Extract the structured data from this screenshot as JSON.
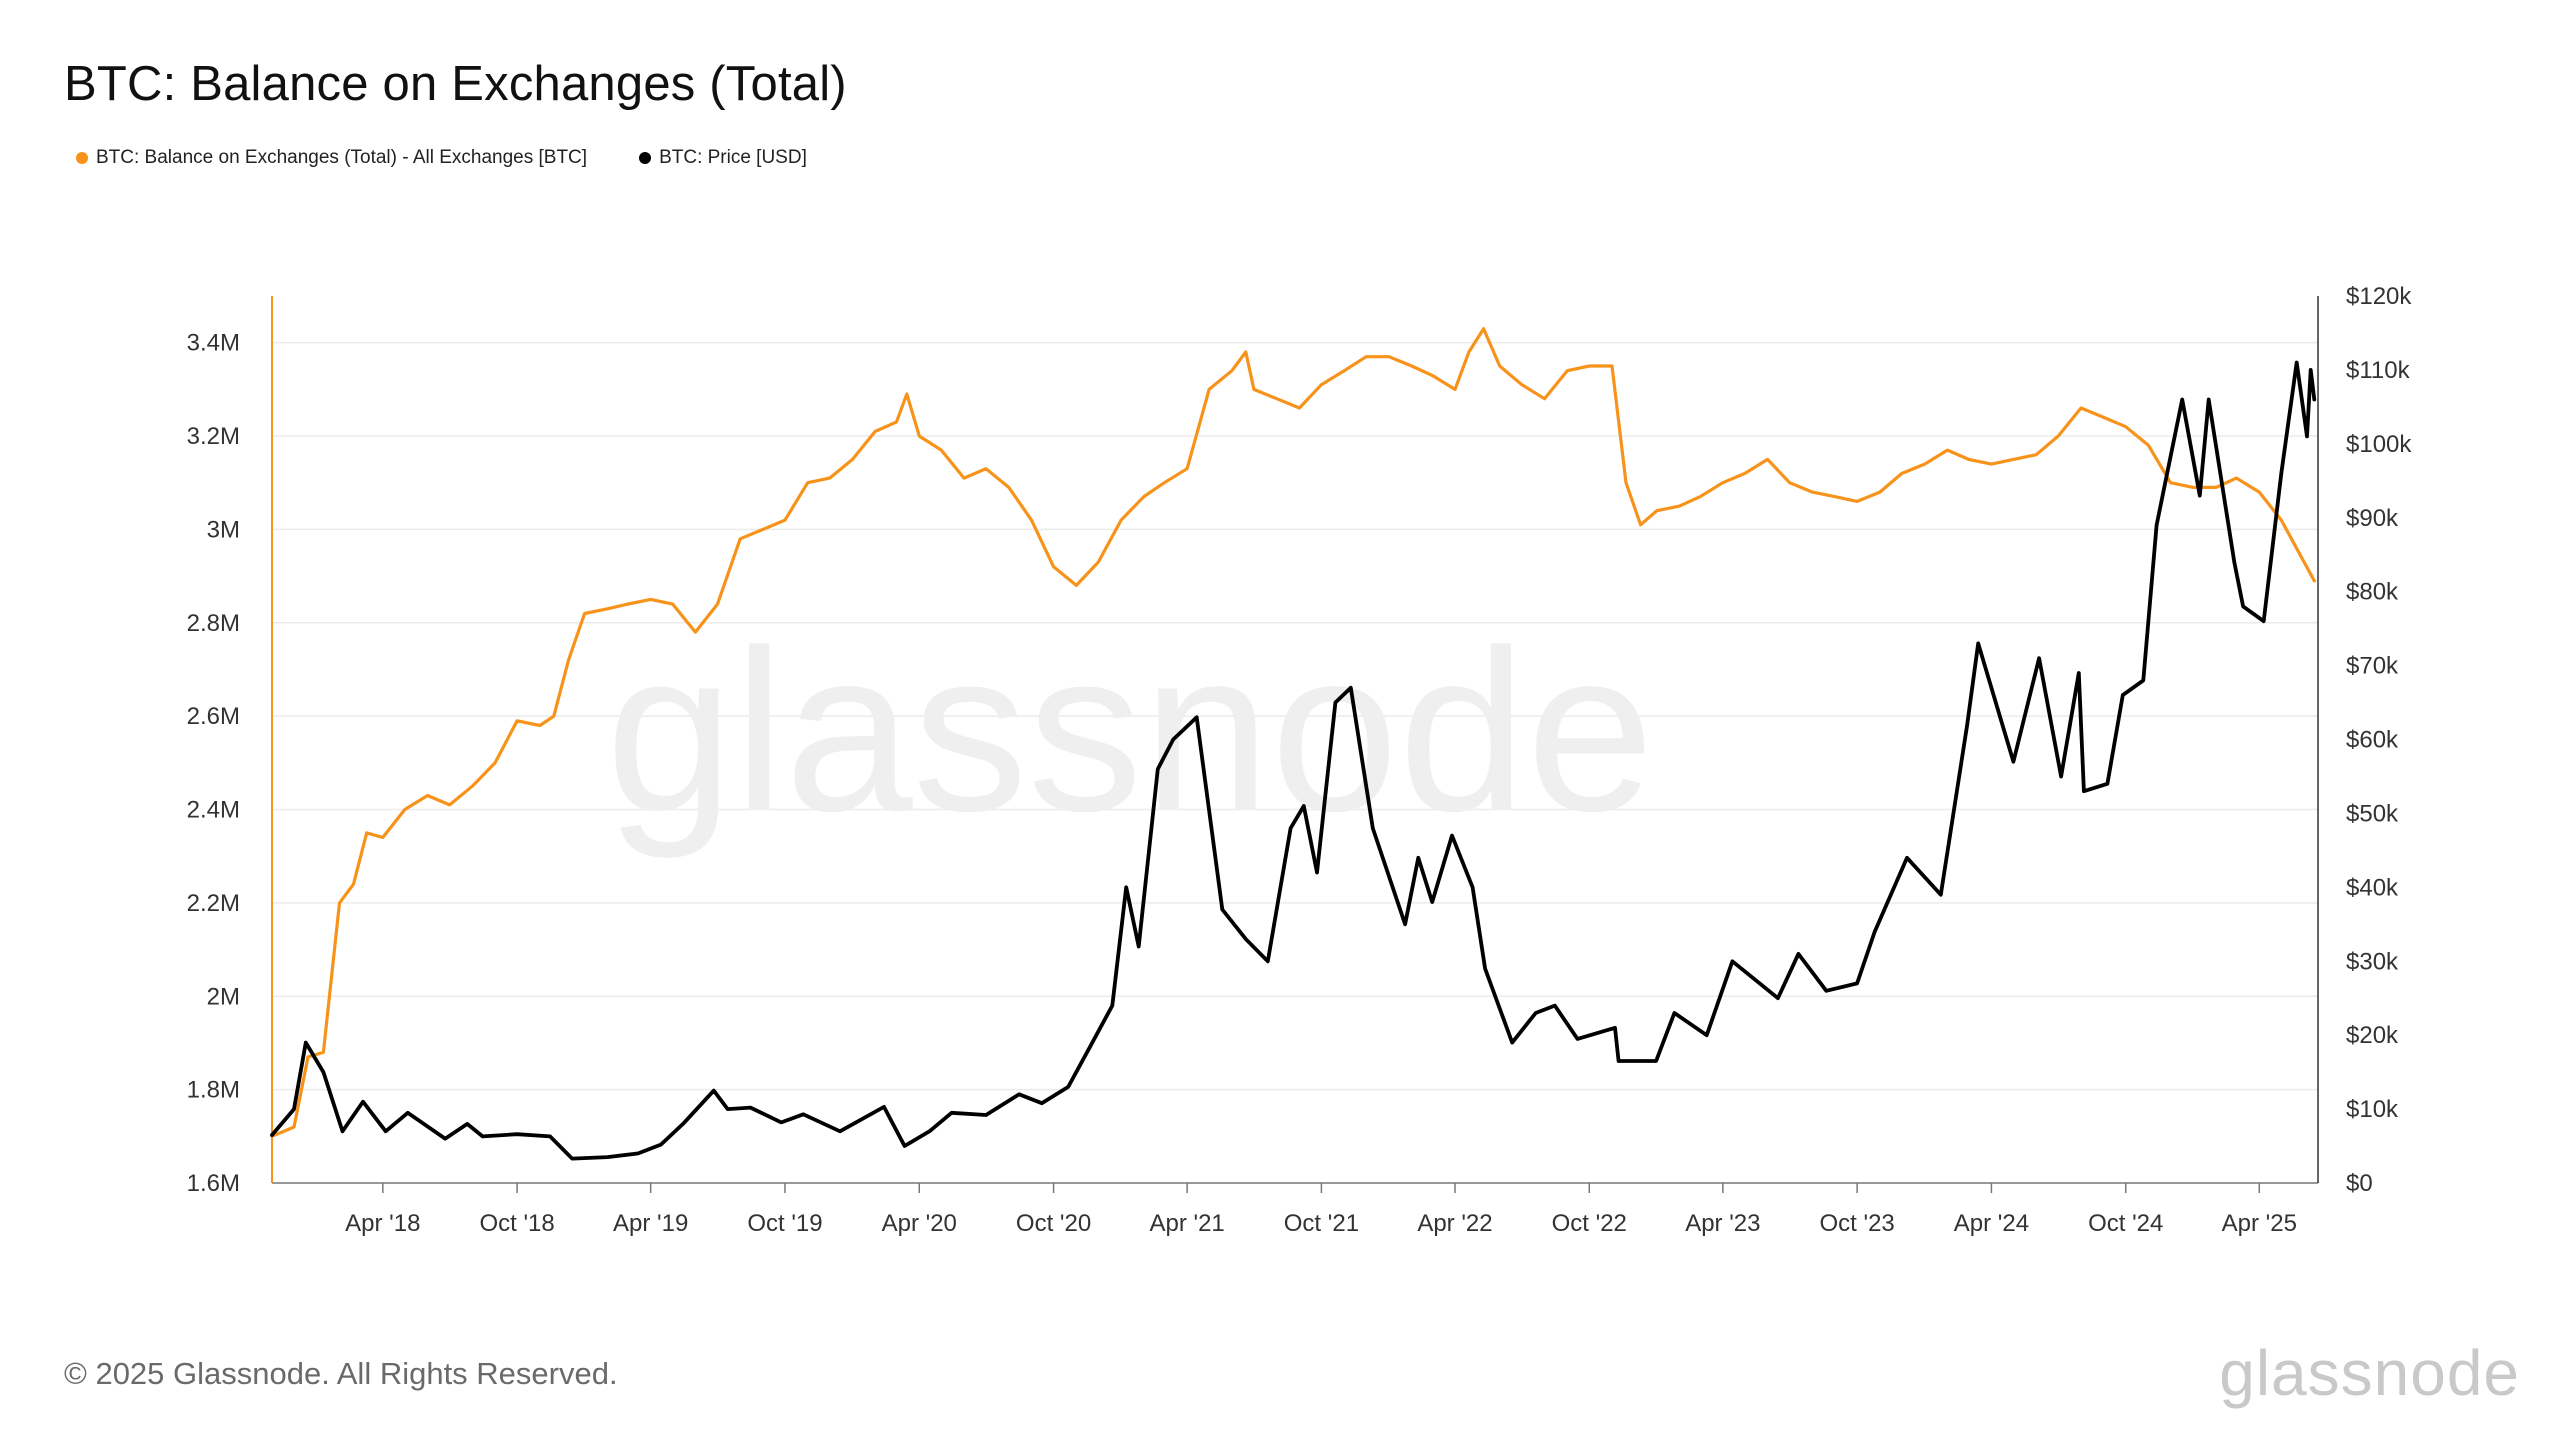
{
  "title": "BTC: Balance on Exchanges (Total)",
  "watermark": "glassnode",
  "footer": {
    "copyright": "© 2025 Glassnode. All Rights Reserved.",
    "brand": "glassnode"
  },
  "colors": {
    "balance": "#f7931a",
    "price": "#000000",
    "grid": "#ebebeb",
    "axis": "#777777"
  },
  "chart_data": {
    "type": "line",
    "title": "BTC: Balance on Exchanges (Total)",
    "legend_position": "top-left",
    "grid": true,
    "x_range": [
      "2017-11-01",
      "2025-06-20"
    ],
    "x_ticks": [
      {
        "date": "2018-04-01",
        "label": "Apr '18"
      },
      {
        "date": "2018-10-01",
        "label": "Oct '18"
      },
      {
        "date": "2019-04-01",
        "label": "Apr '19"
      },
      {
        "date": "2019-10-01",
        "label": "Oct '19"
      },
      {
        "date": "2020-04-01",
        "label": "Apr '20"
      },
      {
        "date": "2020-10-01",
        "label": "Oct '20"
      },
      {
        "date": "2021-04-01",
        "label": "Apr '21"
      },
      {
        "date": "2021-10-01",
        "label": "Oct '21"
      },
      {
        "date": "2022-04-01",
        "label": "Apr '22"
      },
      {
        "date": "2022-10-01",
        "label": "Oct '22"
      },
      {
        "date": "2023-04-01",
        "label": "Apr '23"
      },
      {
        "date": "2023-10-01",
        "label": "Oct '23"
      },
      {
        "date": "2024-04-01",
        "label": "Apr '24"
      },
      {
        "date": "2024-10-01",
        "label": "Oct '24"
      },
      {
        "date": "2025-04-01",
        "label": "Apr '25"
      }
    ],
    "y_left": {
      "range": [
        1.6,
        3.5
      ],
      "unit": "M BTC",
      "ticks": [
        {
          "value": 1.6,
          "label": "1.6M"
        },
        {
          "value": 1.8,
          "label": "1.8M"
        },
        {
          "value": 2.0,
          "label": "2M"
        },
        {
          "value": 2.2,
          "label": "2.2M"
        },
        {
          "value": 2.4,
          "label": "2.4M"
        },
        {
          "value": 2.6,
          "label": "2.6M"
        },
        {
          "value": 2.8,
          "label": "2.8M"
        },
        {
          "value": 3.0,
          "label": "3M"
        },
        {
          "value": 3.2,
          "label": "3.2M"
        },
        {
          "value": 3.4,
          "label": "3.4M"
        }
      ]
    },
    "y_right": {
      "range": [
        0,
        120
      ],
      "unit": "k USD",
      "ticks": [
        {
          "value": 0,
          "label": "$0"
        },
        {
          "value": 10,
          "label": "$10k"
        },
        {
          "value": 20,
          "label": "$20k"
        },
        {
          "value": 30,
          "label": "$30k"
        },
        {
          "value": 40,
          "label": "$40k"
        },
        {
          "value": 50,
          "label": "$50k"
        },
        {
          "value": 60,
          "label": "$60k"
        },
        {
          "value": 70,
          "label": "$70k"
        },
        {
          "value": 80,
          "label": "$80k"
        },
        {
          "value": 90,
          "label": "$90k"
        },
        {
          "value": 100,
          "label": "$100k"
        },
        {
          "value": 110,
          "label": "$110k"
        },
        {
          "value": 120,
          "label": "$120k"
        }
      ]
    },
    "series": [
      {
        "name": "BTC: Balance on Exchanges (Total) - All Exchanges [BTC]",
        "axis": "left",
        "color": "#f7931a",
        "points": [
          [
            "2017-11-01",
            1.7
          ],
          [
            "2017-12-01",
            1.72
          ],
          [
            "2017-12-20",
            1.87
          ],
          [
            "2018-01-10",
            1.88
          ],
          [
            "2018-02-01",
            2.2
          ],
          [
            "2018-02-20",
            2.24
          ],
          [
            "2018-03-10",
            2.35
          ],
          [
            "2018-04-01",
            2.34
          ],
          [
            "2018-05-01",
            2.4
          ],
          [
            "2018-06-01",
            2.43
          ],
          [
            "2018-07-01",
            2.41
          ],
          [
            "2018-08-01",
            2.45
          ],
          [
            "2018-09-01",
            2.5
          ],
          [
            "2018-10-01",
            2.59
          ],
          [
            "2018-11-01",
            2.58
          ],
          [
            "2018-11-20",
            2.6
          ],
          [
            "2018-12-10",
            2.72
          ],
          [
            "2019-01-01",
            2.82
          ],
          [
            "2019-02-01",
            2.83
          ],
          [
            "2019-03-01",
            2.84
          ],
          [
            "2019-04-01",
            2.85
          ],
          [
            "2019-05-01",
            2.84
          ],
          [
            "2019-06-01",
            2.78
          ],
          [
            "2019-07-01",
            2.84
          ],
          [
            "2019-08-01",
            2.98
          ],
          [
            "2019-09-01",
            3.0
          ],
          [
            "2019-10-01",
            3.02
          ],
          [
            "2019-11-01",
            3.1
          ],
          [
            "2019-12-01",
            3.11
          ],
          [
            "2020-01-01",
            3.15
          ],
          [
            "2020-02-01",
            3.21
          ],
          [
            "2020-03-01",
            3.23
          ],
          [
            "2020-03-15",
            3.29
          ],
          [
            "2020-04-01",
            3.2
          ],
          [
            "2020-05-01",
            3.17
          ],
          [
            "2020-06-01",
            3.11
          ],
          [
            "2020-07-01",
            3.13
          ],
          [
            "2020-08-01",
            3.09
          ],
          [
            "2020-09-01",
            3.02
          ],
          [
            "2020-10-01",
            2.92
          ],
          [
            "2020-11-01",
            2.88
          ],
          [
            "2020-12-01",
            2.93
          ],
          [
            "2021-01-01",
            3.02
          ],
          [
            "2021-02-01",
            3.07
          ],
          [
            "2021-03-01",
            3.1
          ],
          [
            "2021-04-01",
            3.13
          ],
          [
            "2021-05-01",
            3.3
          ],
          [
            "2021-06-01",
            3.34
          ],
          [
            "2021-06-20",
            3.38
          ],
          [
            "2021-07-01",
            3.3
          ],
          [
            "2021-08-01",
            3.28
          ],
          [
            "2021-09-01",
            3.26
          ],
          [
            "2021-10-01",
            3.31
          ],
          [
            "2021-11-01",
            3.34
          ],
          [
            "2021-12-01",
            3.37
          ],
          [
            "2022-01-01",
            3.37
          ],
          [
            "2022-02-01",
            3.35
          ],
          [
            "2022-03-01",
            3.33
          ],
          [
            "2022-04-01",
            3.3
          ],
          [
            "2022-04-20",
            3.38
          ],
          [
            "2022-05-10",
            3.43
          ],
          [
            "2022-06-01",
            3.35
          ],
          [
            "2022-07-01",
            3.31
          ],
          [
            "2022-08-01",
            3.28
          ],
          [
            "2022-09-01",
            3.34
          ],
          [
            "2022-10-01",
            3.35
          ],
          [
            "2022-11-01",
            3.35
          ],
          [
            "2022-11-20",
            3.1
          ],
          [
            "2022-12-10",
            3.01
          ],
          [
            "2023-01-01",
            3.04
          ],
          [
            "2023-02-01",
            3.05
          ],
          [
            "2023-03-01",
            3.07
          ],
          [
            "2023-04-01",
            3.1
          ],
          [
            "2023-05-01",
            3.12
          ],
          [
            "2023-06-01",
            3.15
          ],
          [
            "2023-07-01",
            3.1
          ],
          [
            "2023-08-01",
            3.08
          ],
          [
            "2023-09-01",
            3.07
          ],
          [
            "2023-10-01",
            3.06
          ],
          [
            "2023-11-01",
            3.08
          ],
          [
            "2023-12-01",
            3.12
          ],
          [
            "2024-01-01",
            3.14
          ],
          [
            "2024-02-01",
            3.17
          ],
          [
            "2024-03-01",
            3.15
          ],
          [
            "2024-04-01",
            3.14
          ],
          [
            "2024-05-01",
            3.15
          ],
          [
            "2024-06-01",
            3.16
          ],
          [
            "2024-07-01",
            3.2
          ],
          [
            "2024-08-01",
            3.26
          ],
          [
            "2024-09-01",
            3.24
          ],
          [
            "2024-10-01",
            3.22
          ],
          [
            "2024-11-01",
            3.18
          ],
          [
            "2024-12-01",
            3.1
          ],
          [
            "2025-01-01",
            3.09
          ],
          [
            "2025-02-01",
            3.09
          ],
          [
            "2025-03-01",
            3.11
          ],
          [
            "2025-04-01",
            3.08
          ],
          [
            "2025-05-01",
            3.02
          ],
          [
            "2025-06-01",
            2.93
          ],
          [
            "2025-06-15",
            2.89
          ]
        ]
      },
      {
        "name": "BTC: Price [USD]",
        "axis": "right",
        "color": "#000000",
        "points": [
          [
            "2017-11-01",
            6.5
          ],
          [
            "2017-12-01",
            10
          ],
          [
            "2017-12-17",
            19
          ],
          [
            "2018-01-10",
            15
          ],
          [
            "2018-02-05",
            7
          ],
          [
            "2018-03-05",
            11
          ],
          [
            "2018-04-05",
            7
          ],
          [
            "2018-05-05",
            9.5
          ],
          [
            "2018-06-25",
            6
          ],
          [
            "2018-07-25",
            8
          ],
          [
            "2018-08-15",
            6.3
          ],
          [
            "2018-10-01",
            6.6
          ],
          [
            "2018-11-15",
            6.3
          ],
          [
            "2018-12-15",
            3.3
          ],
          [
            "2019-02-01",
            3.5
          ],
          [
            "2019-03-15",
            4
          ],
          [
            "2019-04-15",
            5.2
          ],
          [
            "2019-05-15",
            8
          ],
          [
            "2019-06-26",
            12.5
          ],
          [
            "2019-07-15",
            10
          ],
          [
            "2019-08-15",
            10.2
          ],
          [
            "2019-09-26",
            8.2
          ],
          [
            "2019-10-26",
            9.3
          ],
          [
            "2019-12-15",
            7
          ],
          [
            "2020-02-13",
            10.3
          ],
          [
            "2020-03-12",
            5
          ],
          [
            "2020-04-15",
            7
          ],
          [
            "2020-05-15",
            9.5
          ],
          [
            "2020-07-01",
            9.2
          ],
          [
            "2020-08-15",
            12
          ],
          [
            "2020-09-15",
            10.8
          ],
          [
            "2020-10-21",
            13
          ],
          [
            "2020-11-20",
            18.5
          ],
          [
            "2020-12-20",
            24
          ],
          [
            "2021-01-08",
            40
          ],
          [
            "2021-01-25",
            32
          ],
          [
            "2021-02-20",
            56
          ],
          [
            "2021-03-13",
            60
          ],
          [
            "2021-04-14",
            63
          ],
          [
            "2021-05-19",
            37
          ],
          [
            "2021-06-20",
            33
          ],
          [
            "2021-07-20",
            30
          ],
          [
            "2021-08-20",
            48
          ],
          [
            "2021-09-07",
            51
          ],
          [
            "2021-09-25",
            42
          ],
          [
            "2021-10-20",
            65
          ],
          [
            "2021-11-10",
            67
          ],
          [
            "2021-12-10",
            48
          ],
          [
            "2022-01-23",
            35
          ],
          [
            "2022-02-10",
            44
          ],
          [
            "2022-03-01",
            38
          ],
          [
            "2022-03-28",
            47
          ],
          [
            "2022-04-25",
            40
          ],
          [
            "2022-05-12",
            29
          ],
          [
            "2022-06-18",
            19
          ],
          [
            "2022-07-20",
            23
          ],
          [
            "2022-08-15",
            24
          ],
          [
            "2022-09-15",
            19.5
          ],
          [
            "2022-11-05",
            21
          ],
          [
            "2022-11-10",
            16.5
          ],
          [
            "2022-12-31",
            16.5
          ],
          [
            "2023-01-25",
            23
          ],
          [
            "2023-03-10",
            20
          ],
          [
            "2023-04-14",
            30
          ],
          [
            "2023-06-15",
            25
          ],
          [
            "2023-07-13",
            31
          ],
          [
            "2023-08-20",
            26
          ],
          [
            "2023-10-01",
            27
          ],
          [
            "2023-10-25",
            34
          ],
          [
            "2023-12-08",
            44
          ],
          [
            "2024-01-23",
            39
          ],
          [
            "2024-02-28",
            62
          ],
          [
            "2024-03-14",
            73
          ],
          [
            "2024-05-01",
            57
          ],
          [
            "2024-06-05",
            71
          ],
          [
            "2024-07-05",
            55
          ],
          [
            "2024-07-29",
            69
          ],
          [
            "2024-08-05",
            53
          ],
          [
            "2024-09-06",
            54
          ],
          [
            "2024-09-27",
            66
          ],
          [
            "2024-10-25",
            68
          ],
          [
            "2024-11-12",
            89
          ],
          [
            "2024-12-17",
            106
          ],
          [
            "2025-01-10",
            93
          ],
          [
            "2025-01-22",
            106
          ],
          [
            "2025-02-26",
            84
          ],
          [
            "2025-03-10",
            78
          ],
          [
            "2025-04-07",
            76
          ],
          [
            "2025-05-01",
            96
          ],
          [
            "2025-05-22",
            111
          ],
          [
            "2025-06-05",
            101
          ],
          [
            "2025-06-10",
            110
          ],
          [
            "2025-06-15",
            106
          ]
        ]
      }
    ]
  }
}
